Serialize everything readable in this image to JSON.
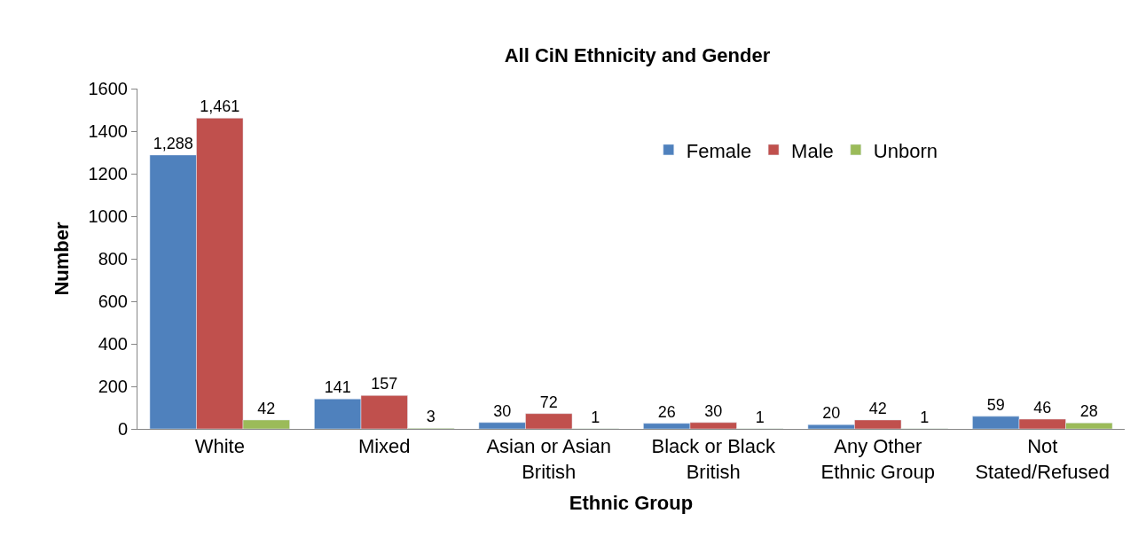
{
  "chart_data": {
    "type": "bar",
    "title": "All CiN Ethnicity and Gender",
    "xlabel": "Ethnic Group",
    "ylabel": "Number",
    "categories": [
      "White",
      "Mixed",
      "Asian or Asian British",
      "Black or Black British",
      "Any Other Ethnic Group",
      "Not Stated/Refused"
    ],
    "series": [
      {
        "name": "Female",
        "color": "#4f81bd",
        "values": [
          1288,
          141,
          30,
          26,
          20,
          59
        ],
        "value_labels": [
          "1,288",
          "141",
          "30",
          "26",
          "20",
          "59"
        ]
      },
      {
        "name": "Male",
        "color": "#c0504d",
        "values": [
          1461,
          157,
          72,
          30,
          42,
          46
        ],
        "value_labels": [
          "1,461",
          "157",
          "72",
          "30",
          "42",
          "46"
        ]
      },
      {
        "name": "Unborn",
        "color": "#9bbb59",
        "values": [
          42,
          3,
          1,
          1,
          1,
          28
        ],
        "value_labels": [
          "42",
          "3",
          "1",
          "1",
          "1",
          "28"
        ]
      }
    ],
    "ylim": [
      0,
      1600
    ],
    "yticks": [
      0,
      200,
      400,
      600,
      800,
      1000,
      1200,
      1400,
      1600
    ],
    "grid": false,
    "legend": "top right"
  }
}
